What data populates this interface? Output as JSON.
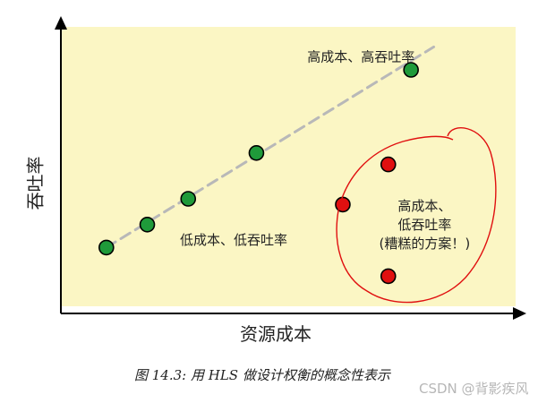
{
  "chart_data": {
    "type": "scatter",
    "title": "",
    "xlabel": "资源成本",
    "ylabel": "吞吐率",
    "grid": false,
    "xlim": [
      0,
      10
    ],
    "ylim": [
      0,
      10
    ],
    "series": [
      {
        "color": "#1f9a3a",
        "points": [
          [
            1,
            2.3
          ],
          [
            1.9,
            3.1
          ],
          [
            2.8,
            4.0
          ],
          [
            4.3,
            5.6
          ],
          [
            7.7,
            8.5
          ]
        ]
      },
      {
        "color": "#e01010",
        "points": [
          [
            7.2,
            5.2
          ],
          [
            6.2,
            3.8
          ],
          [
            7.2,
            1.3
          ]
        ]
      }
    ],
    "trendline": {
      "style": "dashed",
      "color": "#b8b8b8",
      "from": [
        1,
        2.3
      ],
      "to": [
        8.2,
        9.3
      ]
    },
    "annotations": [
      {
        "text": [
          "高成本、高吞吐率"
        ],
        "x": 6.6,
        "y": 8.8
      },
      {
        "text": [
          "低成本、低吞吐率"
        ],
        "x": 3.8,
        "y": 2.4
      },
      {
        "text": [
          "高成本、",
          "低吞吐率",
          "(糟糕的方案！)"
        ],
        "x": 8.0,
        "y": 3.6
      }
    ],
    "highlight": {
      "shape": "hand-drawn circle",
      "color": "#e01010",
      "encloses": "red points"
    },
    "background": "#fbf6c4"
  },
  "caption": "图 14.3:  用 HLS 做设计权衡的概念性表示",
  "watermark": "CSDN @背影疾风"
}
